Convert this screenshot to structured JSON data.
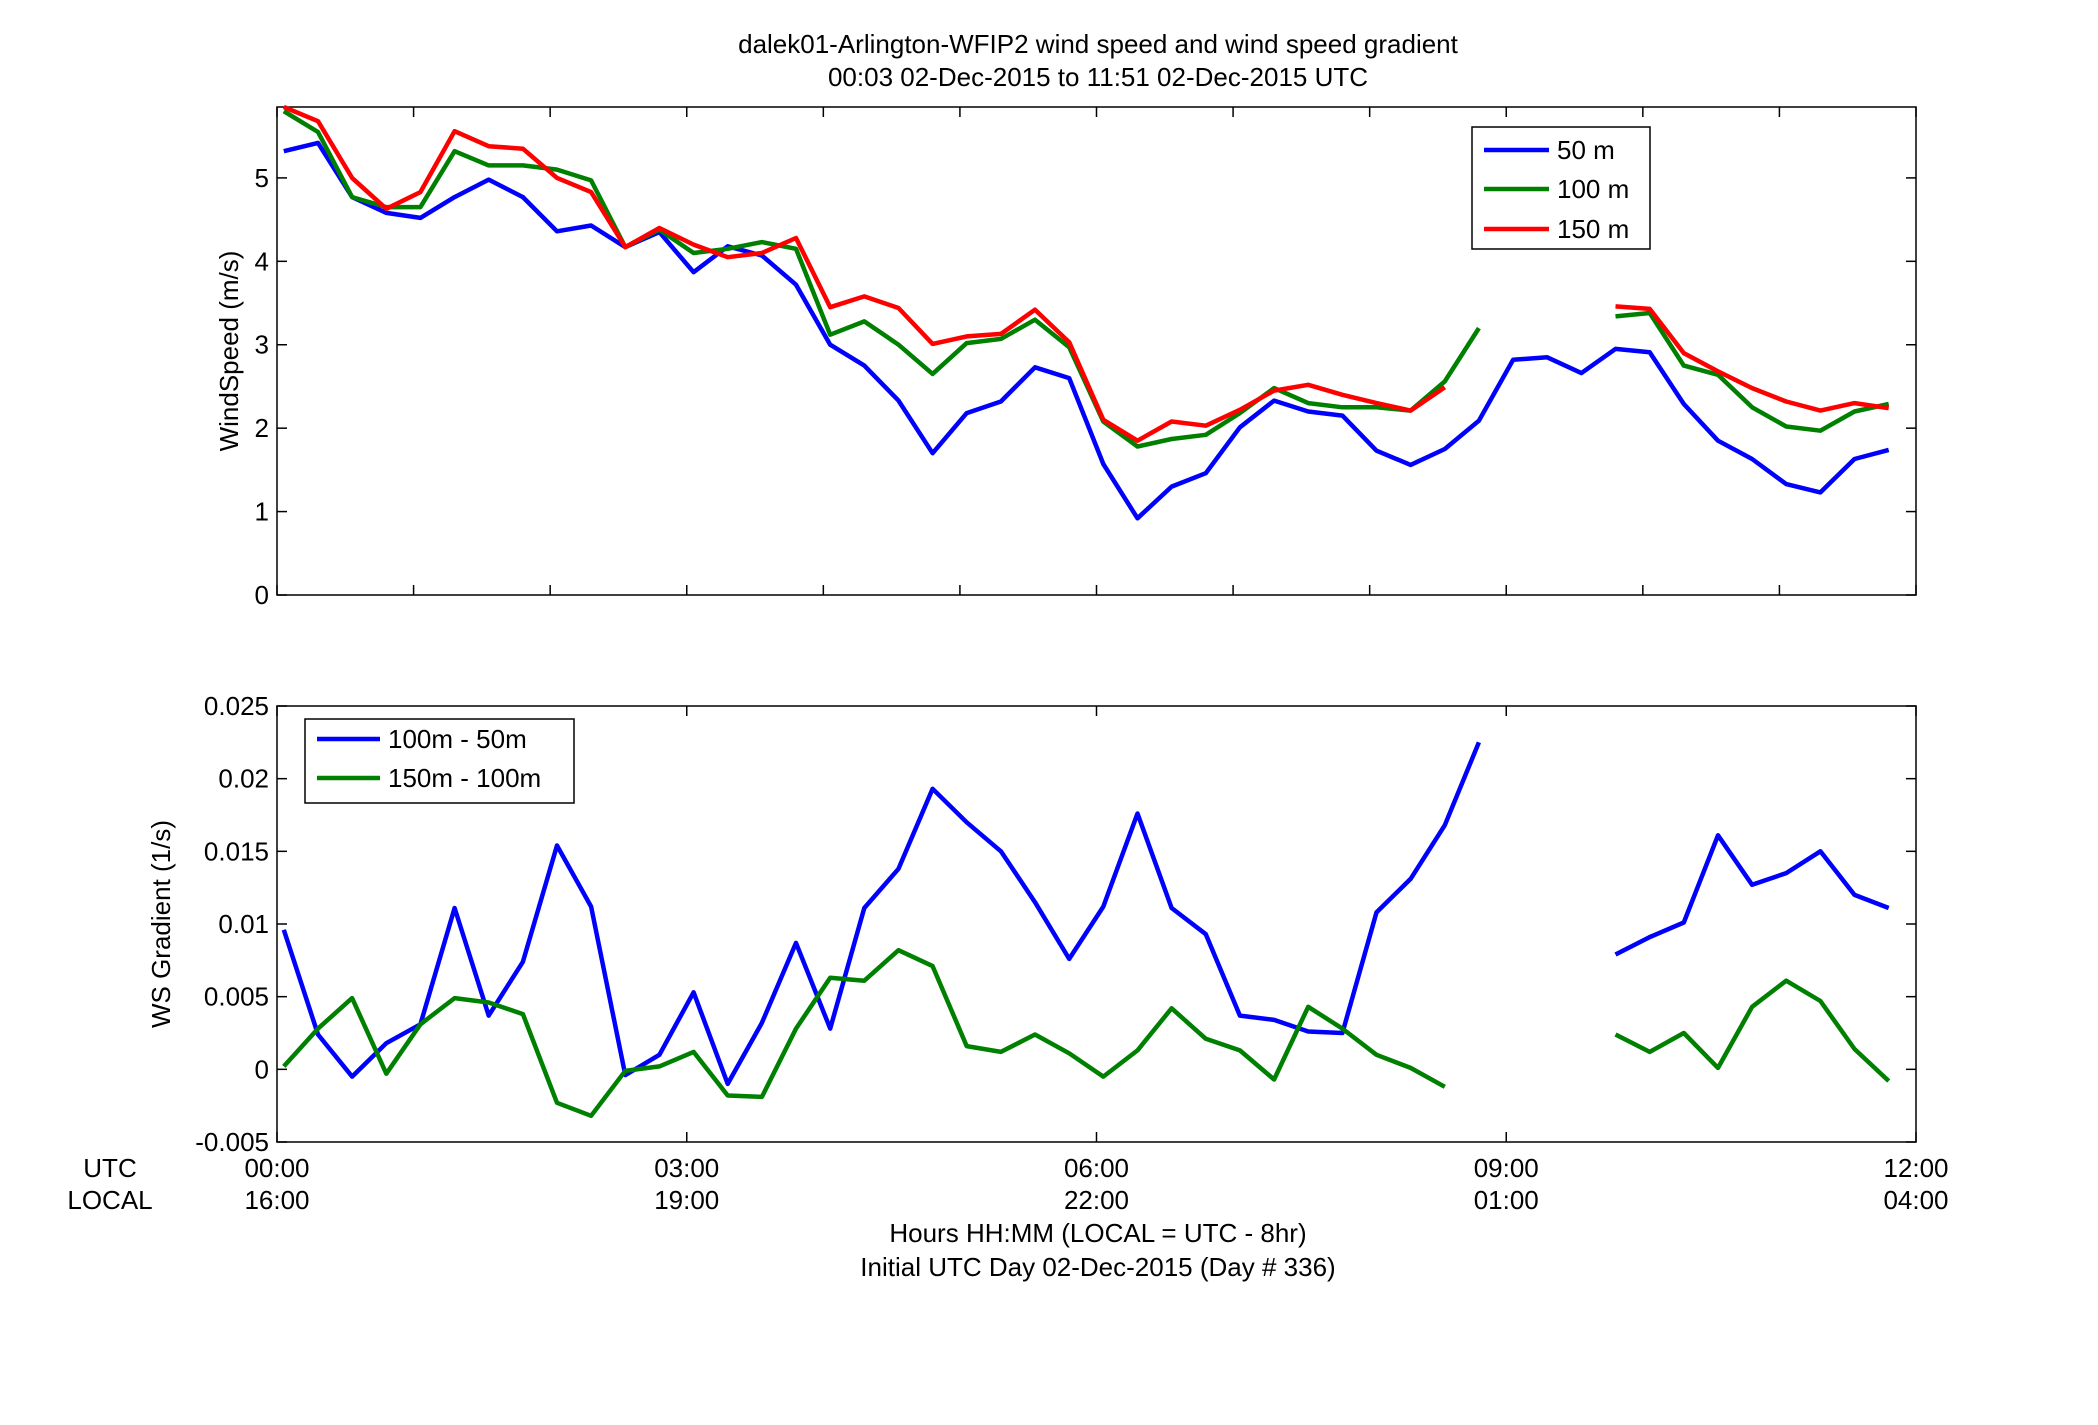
{
  "title_line1": "dalek01-Arlington-WFIP2  wind speed and wind speed gradient",
  "title_line2": "00:03 02-Dec-2015 to 11:51 02-Dec-2015  UTC",
  "row_labels": {
    "utc": "UTC",
    "local": "LOCAL"
  },
  "xlabel_line1": "Hours HH:MM  (LOCAL = UTC - 8hr)",
  "xlabel_line2": "Initial UTC Day 02-Dec-2015 (Day # 336)",
  "colors": {
    "blue": "#0000ff",
    "green": "#008000",
    "red": "#ff0000"
  },
  "chart_data": [
    {
      "type": "line",
      "title": "",
      "xlabel": "",
      "ylabel": "WindSpeed (m/s)",
      "xlim": [
        0,
        12
      ],
      "ylim": [
        0,
        5.85
      ],
      "grid": false,
      "legend_position": "top-right",
      "x_ticks": [
        0,
        1,
        2,
        3,
        4,
        5,
        6,
        7,
        8,
        9,
        10,
        11,
        12
      ],
      "y_ticks": [
        "0",
        "1",
        "2",
        "3",
        "4",
        "5"
      ],
      "y_tick_values": [
        0,
        1,
        2,
        3,
        4,
        5
      ],
      "series": [
        {
          "name": "50 m",
          "color": "#0000ff",
          "points": [
            [
              0.05,
              5.32
            ],
            [
              0.3,
              5.42
            ],
            [
              0.55,
              4.77
            ],
            [
              0.8,
              4.58
            ],
            [
              1.05,
              4.52
            ],
            [
              1.3,
              4.77
            ],
            [
              1.55,
              4.98
            ],
            [
              1.8,
              4.77
            ],
            [
              2.05,
              4.36
            ],
            [
              2.3,
              4.43
            ],
            [
              2.55,
              4.17
            ],
            [
              2.8,
              4.35
            ],
            [
              3.05,
              3.87
            ],
            [
              3.3,
              4.18
            ],
            [
              3.55,
              4.07
            ],
            [
              3.8,
              3.72
            ],
            [
              4.05,
              3.0
            ],
            [
              4.3,
              2.75
            ],
            [
              4.55,
              2.33
            ],
            [
              4.8,
              1.7
            ],
            [
              5.05,
              2.18
            ],
            [
              5.3,
              2.32
            ],
            [
              5.55,
              2.73
            ],
            [
              5.8,
              2.6
            ],
            [
              6.05,
              1.57
            ],
            [
              6.3,
              0.92
            ],
            [
              6.55,
              1.3
            ],
            [
              6.8,
              1.46
            ],
            [
              7.05,
              2.01
            ],
            [
              7.3,
              2.33
            ],
            [
              7.55,
              2.2
            ],
            [
              7.8,
              2.15
            ],
            [
              8.05,
              1.73
            ],
            [
              8.3,
              1.56
            ],
            [
              8.55,
              1.75
            ],
            [
              8.8,
              2.09
            ],
            [
              9.05,
              2.82
            ],
            [
              9.3,
              2.85
            ],
            [
              9.55,
              2.66
            ],
            [
              9.8,
              2.95
            ],
            [
              10.05,
              2.91
            ],
            [
              10.3,
              2.29
            ],
            [
              10.55,
              1.85
            ],
            [
              10.8,
              1.63
            ],
            [
              11.05,
              1.33
            ],
            [
              11.3,
              1.23
            ],
            [
              11.55,
              1.63
            ],
            [
              11.8,
              1.74
            ]
          ]
        },
        {
          "name": "100 m",
          "color": "#008000",
          "points": [
            [
              0.05,
              5.8
            ],
            [
              0.3,
              5.55
            ],
            [
              0.55,
              4.77
            ],
            [
              0.8,
              4.65
            ],
            [
              1.05,
              4.65
            ],
            [
              1.3,
              5.32
            ],
            [
              1.55,
              5.15
            ],
            [
              1.8,
              5.15
            ],
            [
              2.05,
              5.1
            ],
            [
              2.3,
              4.97
            ],
            [
              2.55,
              4.17
            ],
            [
              2.8,
              4.38
            ],
            [
              3.05,
              4.1
            ],
            [
              3.3,
              4.15
            ],
            [
              3.55,
              4.23
            ],
            [
              3.8,
              4.15
            ],
            [
              4.05,
              3.12
            ],
            [
              4.3,
              3.28
            ],
            [
              4.55,
              3.0
            ],
            [
              4.8,
              2.65
            ],
            [
              5.05,
              3.02
            ],
            [
              5.3,
              3.07
            ],
            [
              5.55,
              3.3
            ],
            [
              5.8,
              2.97
            ],
            [
              6.05,
              2.08
            ],
            [
              6.3,
              1.78
            ],
            [
              6.55,
              1.87
            ],
            [
              6.8,
              1.92
            ],
            [
              7.05,
              2.18
            ],
            [
              7.3,
              2.48
            ],
            [
              7.55,
              2.3
            ],
            [
              7.8,
              2.25
            ],
            [
              8.05,
              2.25
            ],
            [
              8.3,
              2.21
            ],
            [
              8.55,
              2.56
            ],
            [
              8.8,
              3.2
            ],
            null,
            [
              9.8,
              3.34
            ],
            [
              10.05,
              3.38
            ],
            [
              10.3,
              2.75
            ],
            [
              10.55,
              2.64
            ],
            [
              10.8,
              2.25
            ],
            [
              11.05,
              2.02
            ],
            [
              11.3,
              1.97
            ],
            [
              11.55,
              2.2
            ],
            [
              11.8,
              2.29
            ]
          ]
        },
        {
          "name": "150 m",
          "color": "#ff0000",
          "points": [
            [
              0.05,
              5.85
            ],
            [
              0.3,
              5.68
            ],
            [
              0.55,
              5.0
            ],
            [
              0.8,
              4.63
            ],
            [
              1.05,
              4.83
            ],
            [
              1.3,
              5.56
            ],
            [
              1.55,
              5.38
            ],
            [
              1.8,
              5.35
            ],
            [
              2.05,
              5.0
            ],
            [
              2.3,
              4.83
            ],
            [
              2.55,
              4.17
            ],
            [
              2.8,
              4.4
            ],
            [
              3.05,
              4.2
            ],
            [
              3.3,
              4.05
            ],
            [
              3.55,
              4.1
            ],
            [
              3.8,
              4.28
            ],
            [
              4.05,
              3.45
            ],
            [
              4.3,
              3.58
            ],
            [
              4.55,
              3.44
            ],
            [
              4.8,
              3.01
            ],
            [
              5.05,
              3.1
            ],
            [
              5.3,
              3.13
            ],
            [
              5.55,
              3.42
            ],
            [
              5.8,
              3.03
            ],
            [
              6.05,
              2.1
            ],
            [
              6.3,
              1.85
            ],
            [
              6.55,
              2.08
            ],
            [
              6.8,
              2.03
            ],
            [
              7.05,
              2.22
            ],
            [
              7.3,
              2.45
            ],
            [
              7.55,
              2.52
            ],
            [
              7.8,
              2.4
            ],
            [
              8.05,
              2.3
            ],
            [
              8.3,
              2.21
            ],
            [
              8.55,
              2.49
            ],
            null,
            [
              9.8,
              3.46
            ],
            [
              10.05,
              3.43
            ],
            [
              10.3,
              2.9
            ],
            [
              10.55,
              2.68
            ],
            [
              10.8,
              2.48
            ],
            [
              11.05,
              2.32
            ],
            [
              11.3,
              2.21
            ],
            [
              11.55,
              2.3
            ],
            [
              11.8,
              2.24
            ]
          ]
        }
      ]
    },
    {
      "type": "line",
      "title": "",
      "xlabel": "",
      "ylabel": "WS Gradient (1/s)",
      "xlim": [
        0,
        12
      ],
      "ylim": [
        -0.005,
        0.025
      ],
      "grid": false,
      "legend_position": "top-left",
      "x_ticks": [
        0,
        3,
        6,
        9,
        12
      ],
      "x_tick_labels_utc": [
        "00:00",
        "03:00",
        "06:00",
        "09:00",
        "12:00"
      ],
      "x_tick_labels_local": [
        "16:00",
        "19:00",
        "22:00",
        "01:00",
        "04:00"
      ],
      "y_ticks": [
        "-0.005",
        "0",
        "0.005",
        "0.01",
        "0.015",
        "0.02",
        "0.025"
      ],
      "y_tick_values": [
        -0.005,
        0,
        0.005,
        0.01,
        0.015,
        0.02,
        0.025
      ],
      "series": [
        {
          "name": "100m - 50m",
          "color": "#0000ff",
          "points": [
            [
              0.05,
              0.0096
            ],
            [
              0.3,
              0.0024
            ],
            [
              0.55,
              -0.0005
            ],
            [
              0.8,
              0.0018
            ],
            [
              1.05,
              0.0031
            ],
            [
              1.3,
              0.0111
            ],
            [
              1.55,
              0.0037
            ],
            [
              1.8,
              0.0074
            ],
            [
              2.05,
              0.0154
            ],
            [
              2.3,
              0.0112
            ],
            [
              2.55,
              -0.0004
            ],
            [
              2.8,
              0.001
            ],
            [
              3.05,
              0.0053
            ],
            [
              3.3,
              -0.001
            ],
            [
              3.55,
              0.0032
            ],
            [
              3.8,
              0.0087
            ],
            [
              4.05,
              0.0028
            ],
            [
              4.3,
              0.0111
            ],
            [
              4.55,
              0.0138
            ],
            [
              4.8,
              0.0193
            ],
            [
              5.05,
              0.017
            ],
            [
              5.3,
              0.015
            ],
            [
              5.55,
              0.0115
            ],
            [
              5.8,
              0.0076
            ],
            [
              6.05,
              0.0112
            ],
            [
              6.3,
              0.0176
            ],
            [
              6.55,
              0.0111
            ],
            [
              6.8,
              0.0093
            ],
            [
              7.05,
              0.0037
            ],
            [
              7.3,
              0.0034
            ],
            [
              7.55,
              0.0026
            ],
            [
              7.8,
              0.0025
            ],
            [
              8.05,
              0.0108
            ],
            [
              8.3,
              0.0131
            ],
            [
              8.55,
              0.0168
            ],
            [
              8.8,
              0.0225
            ],
            null,
            [
              9.8,
              0.0079
            ],
            [
              10.05,
              0.0091
            ],
            [
              10.3,
              0.0101
            ],
            [
              10.55,
              0.0161
            ],
            [
              10.8,
              0.0127
            ],
            [
              11.05,
              0.0135
            ],
            [
              11.3,
              0.015
            ],
            [
              11.55,
              0.012
            ],
            [
              11.8,
              0.0111
            ]
          ]
        },
        {
          "name": "150m - 100m",
          "color": "#008000",
          "points": [
            [
              0.05,
              0.0002
            ],
            [
              0.3,
              0.0028
            ],
            [
              0.55,
              0.0049
            ],
            [
              0.8,
              -0.0003
            ],
            [
              1.05,
              0.0031
            ],
            [
              1.3,
              0.0049
            ],
            [
              1.55,
              0.0046
            ],
            [
              1.8,
              0.0038
            ],
            [
              2.05,
              -0.0023
            ],
            [
              2.3,
              -0.0032
            ],
            [
              2.55,
              -0.0001
            ],
            [
              2.8,
              0.0002
            ],
            [
              3.05,
              0.0012
            ],
            [
              3.3,
              -0.0018
            ],
            [
              3.55,
              -0.0019
            ],
            [
              3.8,
              0.0028
            ],
            [
              4.05,
              0.0063
            ],
            [
              4.3,
              0.0061
            ],
            [
              4.55,
              0.0082
            ],
            [
              4.8,
              0.0071
            ],
            [
              5.05,
              0.0016
            ],
            [
              5.3,
              0.0012
            ],
            [
              5.55,
              0.0024
            ],
            [
              5.8,
              0.0011
            ],
            [
              6.05,
              -0.0005
            ],
            [
              6.3,
              0.0013
            ],
            [
              6.55,
              0.0042
            ],
            [
              6.8,
              0.0021
            ],
            [
              7.05,
              0.0013
            ],
            [
              7.3,
              -0.0007
            ],
            [
              7.55,
              0.0043
            ],
            [
              7.8,
              0.0028
            ],
            [
              8.05,
              0.001
            ],
            [
              8.3,
              0.0001
            ],
            [
              8.55,
              -0.0012
            ],
            null,
            [
              9.8,
              0.0024
            ],
            [
              10.05,
              0.0012
            ],
            [
              10.3,
              0.0025
            ],
            [
              10.55,
              0.0001
            ],
            [
              10.8,
              0.0043
            ],
            [
              11.05,
              0.0061
            ],
            [
              11.3,
              0.0047
            ],
            [
              11.55,
              0.0014
            ],
            [
              11.8,
              -0.0008
            ]
          ]
        }
      ]
    }
  ]
}
